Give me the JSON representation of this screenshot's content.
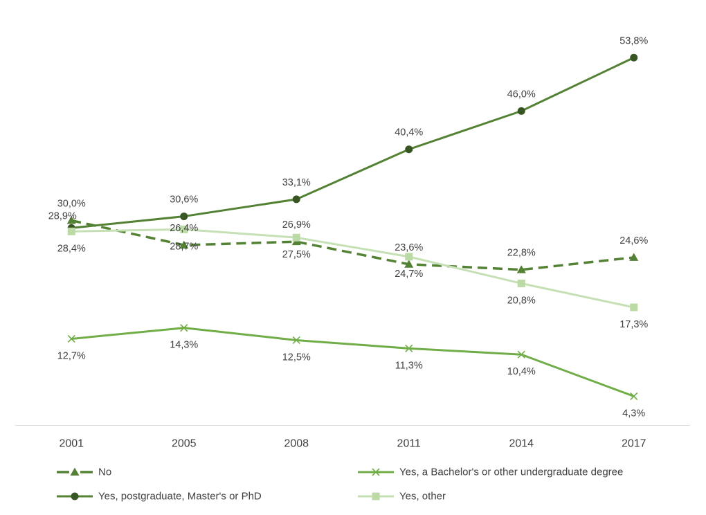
{
  "chart_data": {
    "type": "line",
    "categories": [
      "2001",
      "2005",
      "2008",
      "2011",
      "2014",
      "2017"
    ],
    "ylim": [
      0,
      60
    ],
    "grid": false,
    "y_axis_visible": false,
    "legend_position": "bottom",
    "series": [
      {
        "name": "No",
        "values": [
          30.0,
          26.4,
          26.9,
          23.6,
          22.8,
          24.6
        ],
        "labels": [
          "30,0%",
          "26,4%",
          "26,9%",
          "23,6%",
          "22,8%",
          "24,6%"
        ],
        "color": "#548235",
        "marker_color": "#548235",
        "marker": "triangle",
        "line_style": "dashed",
        "label_position": "above"
      },
      {
        "name": "Yes, a Bachelor's or other undergraduate degree",
        "values": [
          12.7,
          14.3,
          12.5,
          11.3,
          10.4,
          4.3
        ],
        "labels": [
          "12,7%",
          "14,3%",
          "12,5%",
          "11,3%",
          "10,4%",
          "4,3%"
        ],
        "color": "#70AD47",
        "marker_color": "#70AD47",
        "marker": "x",
        "line_style": "solid",
        "label_position": "below"
      },
      {
        "name": "Yes, postgraduate, Master's or PhD",
        "values": [
          28.9,
          30.6,
          33.1,
          40.4,
          46.0,
          53.8
        ],
        "labels": [
          "28,9%",
          "30,6%",
          "33,1%",
          "40,4%",
          "46,0%",
          "53,8%"
        ],
        "color": "#548235",
        "marker_color": "#375623",
        "marker": "circle",
        "line_style": "solid",
        "label_position": "above"
      },
      {
        "name": "Yes, other",
        "values": [
          28.4,
          28.7,
          27.5,
          24.7,
          20.8,
          17.3
        ],
        "labels": [
          "28,4%",
          "28,7%",
          "27,5%",
          "24,7%",
          "20,8%",
          "17,3%"
        ],
        "color": "#C5E0B4",
        "marker_color": "#BBDAA6",
        "marker": "square",
        "line_style": "solid",
        "label_position": "below"
      }
    ]
  },
  "colors": {
    "text": "#404040",
    "axis": "#D9D9D9",
    "background": "#FFFFFF"
  }
}
